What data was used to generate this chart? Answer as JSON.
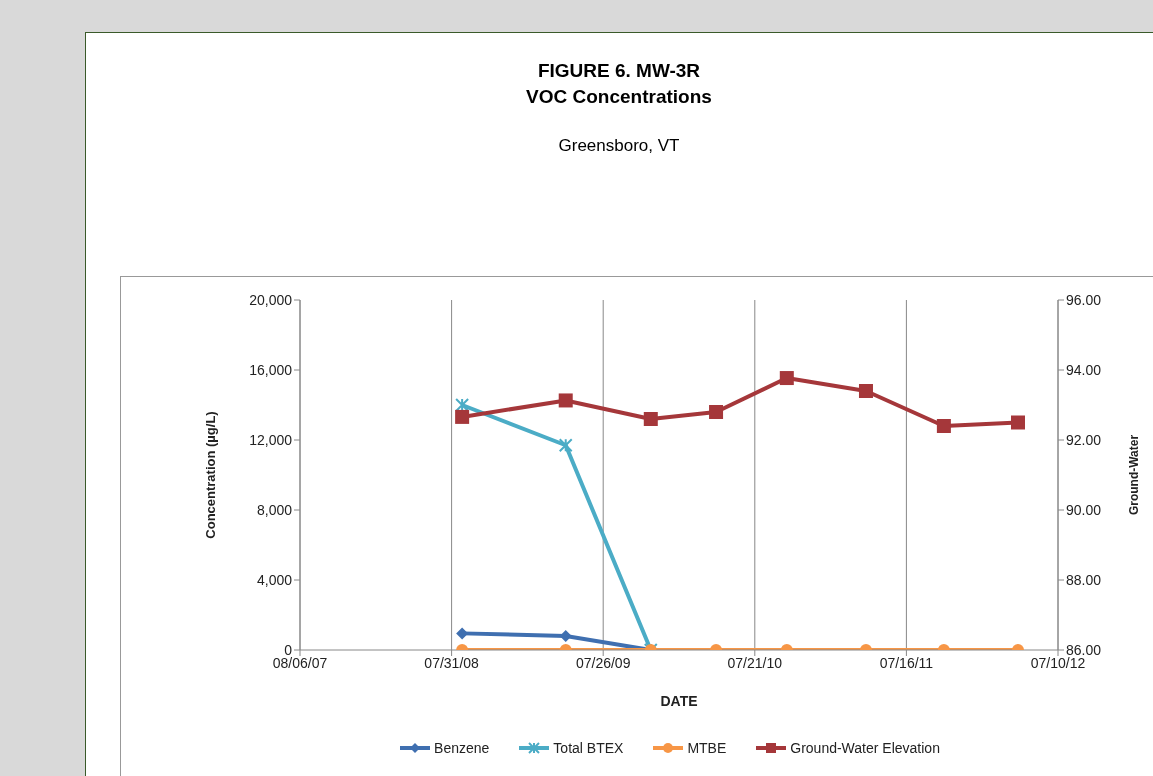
{
  "chart_data": {
    "type": "line",
    "title": "FIGURE 6.  MW-3R\nVOC Concentrations",
    "subtitle": "Greensboro, VT",
    "xlabel": "DATE",
    "ylabel": "Concentration (µg/L)",
    "y2label": "Ground-Water",
    "x": [
      "2008-08-25",
      "2009-04-28",
      "2009-11-16",
      "2010-04-20",
      "2010-10-05",
      "2011-04-11",
      "2011-10-13",
      "2012-04-06"
    ],
    "series": [
      {
        "name": "Benzene",
        "color": "#3f6fb0",
        "marker": "diamond",
        "values": [
          950,
          800,
          0,
          null,
          null,
          null,
          null,
          null
        ]
      },
      {
        "name": "Total BTEX",
        "color": "#4bacc6",
        "marker": "cross",
        "values": [
          14000,
          11700,
          0,
          null,
          null,
          null,
          null,
          null
        ]
      },
      {
        "name": "MTBE",
        "color": "#f79646",
        "marker": "circle",
        "values": [
          0,
          0,
          0,
          0,
          0,
          0,
          0,
          0
        ]
      },
      {
        "name": "Ground-Water Elevation",
        "color": "#a5373a",
        "marker": "square",
        "axis": "y2",
        "values": [
          92.66,
          93.13,
          92.6,
          92.8,
          93.77,
          93.4,
          92.4,
          92.5
        ]
      }
    ],
    "xlim": [
      "2007-08-06",
      "2012-07-10"
    ],
    "xticks": [
      {
        "value": "2007-08-06",
        "label": "08/06/07"
      },
      {
        "value": "2008-07-31",
        "label": "07/31/08"
      },
      {
        "value": "2009-07-26",
        "label": "07/26/09"
      },
      {
        "value": "2010-07-21",
        "label": "07/21/10"
      },
      {
        "value": "2011-07-16",
        "label": "07/16/11"
      },
      {
        "value": "2012-07-10",
        "label": "07/10/12"
      }
    ],
    "ylim": [
      0,
      20000
    ],
    "yticks": [
      {
        "value": 0,
        "label": "0"
      },
      {
        "value": 4000,
        "label": "4,000"
      },
      {
        "value": 8000,
        "label": "8,000"
      },
      {
        "value": 12000,
        "label": "12,000"
      },
      {
        "value": 16000,
        "label": "16,000"
      },
      {
        "value": 20000,
        "label": "20,000"
      }
    ],
    "y2lim": [
      86,
      96
    ],
    "y2ticks": [
      {
        "value": 86,
        "label": "86.00"
      },
      {
        "value": 88,
        "label": "88.00"
      },
      {
        "value": 90,
        "label": "90.00"
      },
      {
        "value": 92,
        "label": "92.00"
      },
      {
        "value": 94,
        "label": "94.00"
      },
      {
        "value": 96,
        "label": "96.00"
      }
    ],
    "grid": true,
    "legend": "bottom"
  }
}
